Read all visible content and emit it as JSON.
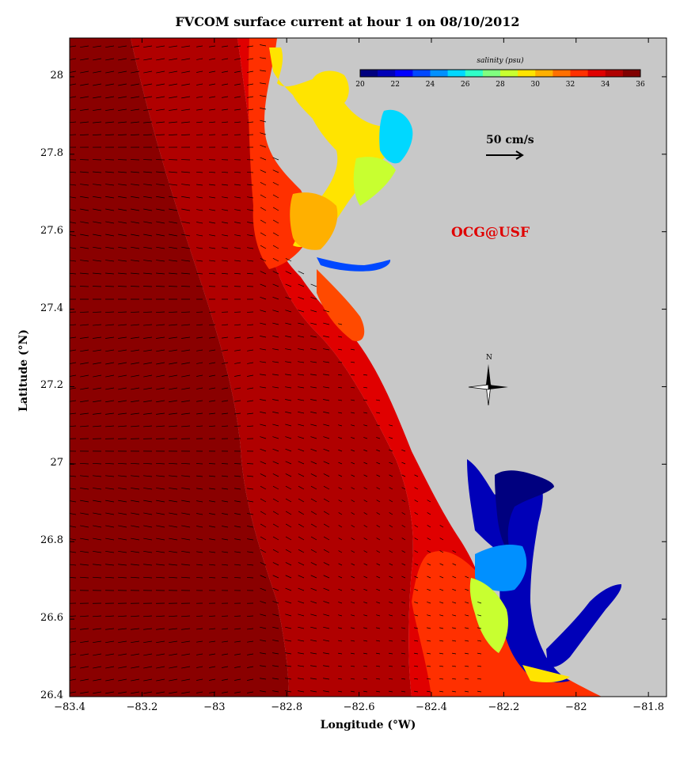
{
  "title": "FVCOM surface current at hour 1 on 08/10/2012",
  "x_axis": {
    "label": "Longitude (°W)",
    "ticks": [
      "−83.4",
      "−83.2",
      "−83",
      "−82.8",
      "−82.6",
      "−82.4",
      "−82.2",
      "−82",
      "−81.8"
    ],
    "range": [
      -83.4,
      -81.75
    ]
  },
  "y_axis": {
    "label": "Latitude (°N)",
    "ticks": [
      "26.4",
      "26.6",
      "26.8",
      "27",
      "27.2",
      "27.4",
      "27.6",
      "27.8",
      "28"
    ],
    "range": [
      26.4,
      28.1
    ]
  },
  "colorbar": {
    "title": "salinity (psu)",
    "ticks": [
      "20",
      "22",
      "24",
      "26",
      "28",
      "30",
      "32",
      "34",
      "36"
    ],
    "colors": [
      "#00007f",
      "#0000b8",
      "#0000ff",
      "#0048ff",
      "#0090ff",
      "#00d8ff",
      "#30ffc8",
      "#80ff80",
      "#c8ff30",
      "#ffe400",
      "#ffb000",
      "#ff7000",
      "#ff3000",
      "#e00000",
      "#b00000",
      "#800000"
    ]
  },
  "scale_arrow": {
    "label": "50 cm/s"
  },
  "credit": "OCG@USF",
  "north_label": "N",
  "colors": {
    "land": "#c8c8c8",
    "offshore": "#800000",
    "midshelf": "#b00000",
    "nearshore": "#e00000",
    "coastal": "#ff3000"
  }
}
